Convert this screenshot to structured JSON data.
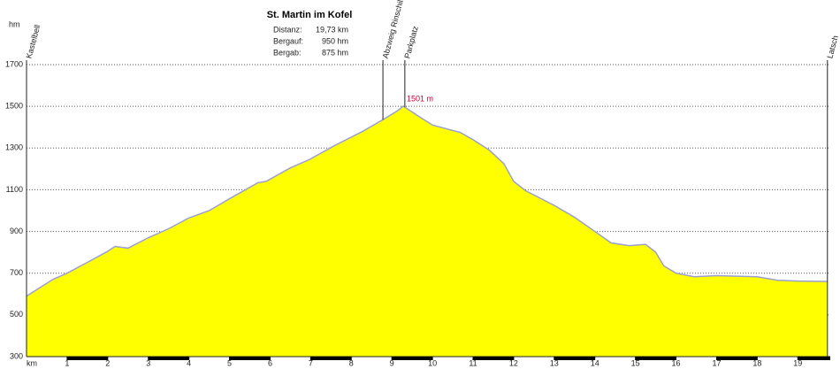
{
  "chart_data": {
    "type": "area",
    "title": "St. Martin im Kofel",
    "stats": [
      {
        "label": "Distanz:",
        "value": "19,73 km"
      },
      {
        "label": "Bergauf:",
        "value": "950 hm"
      },
      {
        "label": "Bergab:",
        "value": "875 hm"
      }
    ],
    "y_label": "hm",
    "x_label": "km",
    "x": [
      0,
      0.65,
      1,
      1.53,
      2,
      2.18,
      2.5,
      3,
      3.5,
      4,
      4.5,
      5,
      5.7,
      5.9,
      6.5,
      6.97,
      7.6,
      8.28,
      8.78,
      9.15,
      9.28,
      9.6,
      10,
      10.68,
      11,
      11.4,
      11.76,
      12,
      12.3,
      13,
      13.5,
      14,
      14.4,
      14.85,
      15.25,
      15.5,
      15.7,
      16,
      16.45,
      17,
      18,
      18.5,
      19,
      19.73
    ],
    "values": [
      590,
      670,
      700,
      755,
      805,
      828,
      820,
      870,
      913,
      965,
      1000,
      1057,
      1134,
      1140,
      1205,
      1245,
      1313,
      1380,
      1436,
      1480,
      1501,
      1460,
      1410,
      1375,
      1340,
      1290,
      1225,
      1140,
      1095,
      1025,
      968,
      900,
      845,
      832,
      838,
      800,
      735,
      700,
      683,
      688,
      683,
      666,
      662,
      660
    ],
    "color": "#ffff00",
    "line_color": "#9aa0d0",
    "peak": {
      "x": 9.28,
      "value": 1501,
      "label": "1501 m"
    },
    "markers": [
      {
        "name": "Kastelbell",
        "x": 0
      },
      {
        "name": "Abzweig Rinschill",
        "x": 8.78
      },
      {
        "name": "Parkplatz",
        "x": 9.32
      },
      {
        "name": "Latsch",
        "x": 19.73
      }
    ],
    "xlim": [
      0,
      19.8
    ],
    "xticks": [
      1,
      2,
      3,
      4,
      5,
      6,
      7,
      8,
      9,
      10,
      11,
      12,
      13,
      14,
      15,
      16,
      17,
      18,
      19
    ],
    "ylim": [
      300,
      1700
    ],
    "yticks": [
      300,
      500,
      700,
      900,
      1100,
      1300,
      1500,
      1700
    ],
    "grid": true
  }
}
